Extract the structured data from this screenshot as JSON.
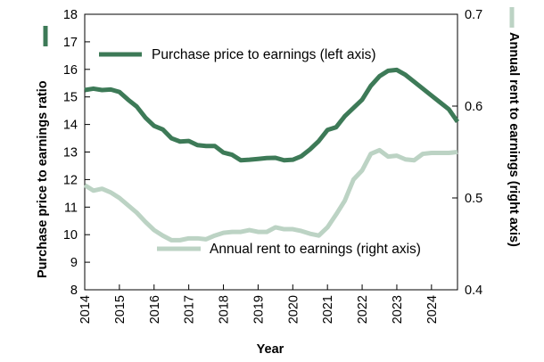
{
  "chart_data": {
    "type": "line",
    "xlabel": "Year",
    "ylabel_left": "Purchase price to earnings ratio",
    "ylabel_right": "Annual rent to earnings (right axis)",
    "ylim_left": [
      8,
      18
    ],
    "ylim_right": [
      0.4,
      0.7
    ],
    "yticks_left": [
      "8",
      "9",
      "10",
      "11",
      "12",
      "13",
      "14",
      "15",
      "16",
      "17",
      "18"
    ],
    "yticks_right": [
      "0.4",
      "0.5",
      "0.6",
      "0.7"
    ],
    "xticks": [
      "2014",
      "2015",
      "2016",
      "2017",
      "2018",
      "2019",
      "2020",
      "2021",
      "2022",
      "2023",
      "2024"
    ],
    "xlim": [
      2014,
      2024.75
    ],
    "colors": {
      "purchase": "#3d7a57",
      "rent": "#bcd3c4"
    },
    "series": [
      {
        "name": "Purchase price to earnings (left axis)",
        "axis": "left",
        "x": [
          2014,
          2014.25,
          2014.5,
          2014.75,
          2015,
          2015.25,
          2015.5,
          2015.75,
          2016,
          2016.25,
          2016.5,
          2016.75,
          2017,
          2017.25,
          2017.5,
          2017.75,
          2018,
          2018.25,
          2018.5,
          2018.75,
          2019,
          2019.25,
          2019.5,
          2019.75,
          2020,
          2020.25,
          2020.5,
          2020.75,
          2021,
          2021.25,
          2021.5,
          2021.75,
          2022,
          2022.25,
          2022.5,
          2022.75,
          2023,
          2023.25,
          2023.5,
          2023.75,
          2024,
          2024.25,
          2024.5,
          2024.75
        ],
        "values": [
          15.25,
          15.3,
          15.25,
          15.27,
          15.18,
          14.9,
          14.65,
          14.25,
          13.95,
          13.82,
          13.5,
          13.38,
          13.4,
          13.25,
          13.22,
          13.22,
          12.98,
          12.9,
          12.7,
          12.72,
          12.75,
          12.78,
          12.79,
          12.7,
          12.72,
          12.85,
          13.1,
          13.4,
          13.8,
          13.9,
          14.3,
          14.6,
          14.9,
          15.4,
          15.75,
          15.95,
          15.98,
          15.8,
          15.55,
          15.3,
          15.05,
          14.8,
          14.55,
          14.1
        ]
      },
      {
        "name": "Annual rent to earnings (right axis)",
        "axis": "right",
        "x": [
          2014,
          2014.25,
          2014.5,
          2014.75,
          2015,
          2015.25,
          2015.5,
          2015.75,
          2016,
          2016.25,
          2016.5,
          2016.75,
          2017,
          2017.25,
          2017.5,
          2017.75,
          2018,
          2018.25,
          2018.5,
          2018.75,
          2019,
          2019.25,
          2019.5,
          2019.75,
          2020,
          2020.25,
          2020.5,
          2020.75,
          2021,
          2021.25,
          2021.5,
          2021.75,
          2022,
          2022.25,
          2022.5,
          2022.75,
          2023,
          2023.25,
          2023.5,
          2023.75,
          2024,
          2024.25,
          2024.5,
          2024.75
        ],
        "values": [
          0.514,
          0.508,
          0.51,
          0.506,
          0.5,
          0.492,
          0.484,
          0.474,
          0.465,
          0.459,
          0.454,
          0.454,
          0.456,
          0.456,
          0.455,
          0.459,
          0.462,
          0.463,
          0.463,
          0.465,
          0.463,
          0.463,
          0.468,
          0.466,
          0.466,
          0.464,
          0.461,
          0.459,
          0.468,
          0.482,
          0.497,
          0.52,
          0.53,
          0.548,
          0.552,
          0.545,
          0.546,
          0.542,
          0.541,
          0.548,
          0.549,
          0.549,
          0.549,
          0.55
        ]
      }
    ],
    "legend": [
      {
        "label": "Purchase price to earnings (left axis)",
        "placement": "upper-left"
      },
      {
        "label": "Annual rent to earnings (right axis)",
        "placement": "lower-right"
      }
    ]
  }
}
